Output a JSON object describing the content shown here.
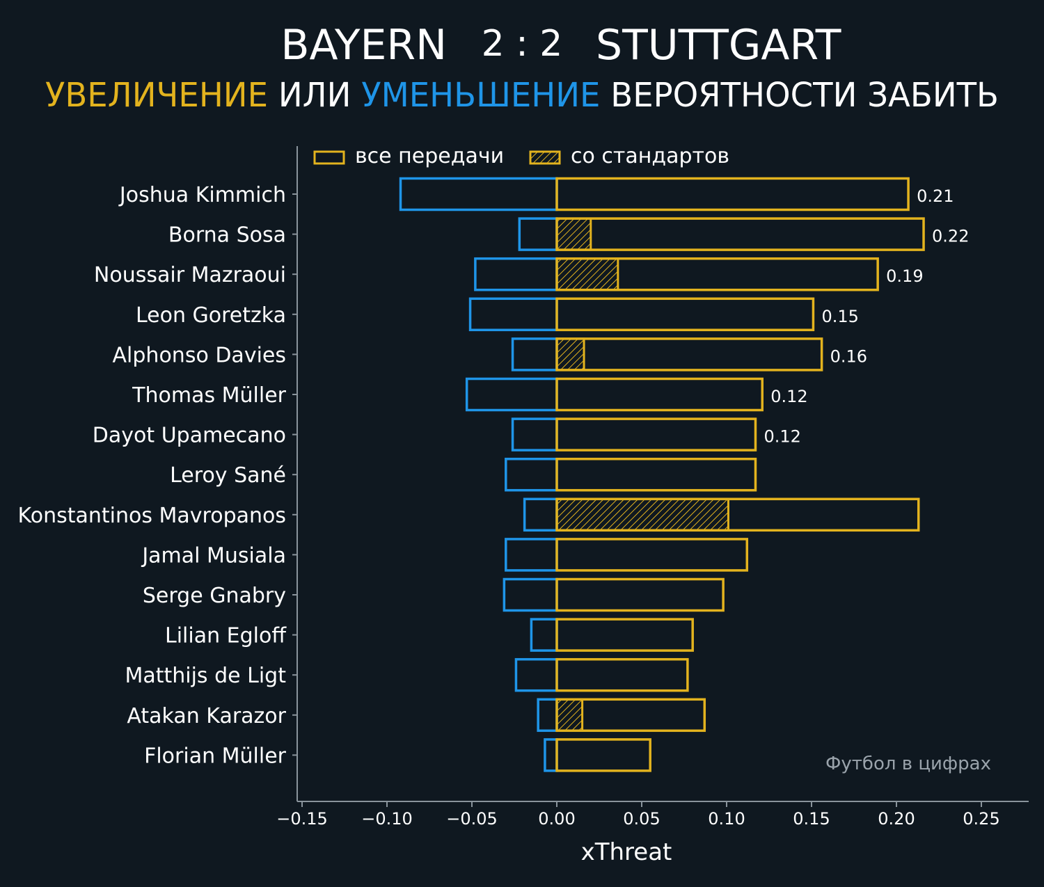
{
  "title": {
    "home": "BAYERN",
    "score": "2 : 2",
    "away": "STUTTGART"
  },
  "subtitle": {
    "part1": "УВЕЛИЧЕНИЕ",
    "part2": " ИЛИ ",
    "part3": "УМЕНЬШЕНИЕ",
    "part4": " ВЕРОЯТНОСТИ ЗАБИТЬ"
  },
  "colors": {
    "background": "#0f1820",
    "positive": "#e3b31e",
    "negative": "#1f95e8",
    "axis": "#8a949c"
  },
  "legend": {
    "all_passes": "все передачи",
    "set_pieces": "со стандартов"
  },
  "watermark": "Футбол в цифрах",
  "chart_data": {
    "type": "bar",
    "orientation": "horizontal",
    "title": "BAYERN 2 : 2 STUTTGART",
    "subtitle": "УВЕЛИЧЕНИЕ ИЛИ УМЕНЬШЕНИЕ ВЕРОЯТНОСТИ ЗАБИТЬ",
    "xlabel": "xThreat",
    "ylabel": "",
    "xlim": [
      -0.16,
      0.27
    ],
    "xticks": [
      -0.15,
      -0.1,
      -0.05,
      0.0,
      0.05,
      0.1,
      0.15,
      0.2,
      0.25
    ],
    "xtick_labels": [
      "−0.15",
      "−0.10",
      "−0.05",
      "0.00",
      "0.05",
      "0.10",
      "0.15",
      "0.20",
      "0.25"
    ],
    "legend_position": "top-left",
    "categories": [
      "Joshua Kimmich",
      "Borna Sosa",
      "Noussair Mazraoui",
      "Leon Goretzka",
      "Alphonso Davies",
      "Thomas Müller",
      "Dayot Upamecano",
      "Leroy Sané",
      "Konstantinos Mavropanos",
      "Jamal Musiala",
      "Serge Gnabry",
      "Lilian Egloff",
      "Matthijs de Ligt",
      "Atakan Karazor",
      "Florian Müller"
    ],
    "series": [
      {
        "name": "все передачи (+)",
        "values": [
          0.207,
          0.216,
          0.189,
          0.151,
          0.156,
          0.121,
          0.117,
          0.117,
          0.213,
          0.112,
          0.098,
          0.08,
          0.077,
          0.087,
          0.055
        ]
      },
      {
        "name": "все передачи (−)",
        "values": [
          -0.092,
          -0.022,
          -0.048,
          -0.051,
          -0.026,
          -0.053,
          -0.026,
          -0.03,
          -0.019,
          -0.03,
          -0.031,
          -0.015,
          -0.024,
          -0.011,
          -0.007
        ]
      },
      {
        "name": "со стандартов",
        "values": [
          0,
          0.02,
          0.036,
          0,
          0.016,
          0,
          0,
          0,
          0.101,
          0,
          0,
          0,
          0,
          0.015,
          0
        ]
      }
    ],
    "data_labels": [
      "0.21",
      "0.22",
      "0.19",
      "0.15",
      "0.16",
      "0.12",
      "0.12",
      "",
      "",
      "",
      "",
      "",
      "",
      "",
      ""
    ]
  }
}
